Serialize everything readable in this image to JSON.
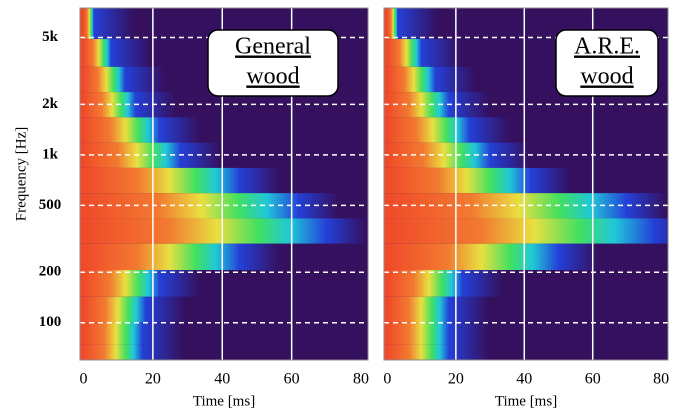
{
  "chart_data": [
    {
      "type": "heatmap",
      "xlabel": "Time [ms]",
      "ylabel": "Frequency [Hz]",
      "annotation": [
        "General",
        "wood"
      ],
      "y": [
        6000,
        4000,
        2800,
        2000,
        1400,
        1000,
        700,
        500,
        350,
        250,
        170,
        120,
        85,
        65
      ],
      "values": [
        3,
        8,
        12,
        15,
        22,
        28,
        45,
        62,
        70,
        45,
        22,
        18,
        17,
        17
      ],
      "xlim": [
        -1,
        82
      ],
      "xticks": [
        0,
        20,
        40,
        60,
        80
      ],
      "ylim": [
        60,
        7500
      ],
      "log_y": true,
      "yticks": [
        {
          "value": 5000,
          "label": "5k"
        },
        {
          "value": 2000,
          "label": "2k"
        },
        {
          "value": 1000,
          "label": "1k"
        },
        500,
        200,
        100
      ],
      "vgrid": [
        20,
        40,
        60
      ]
    },
    {
      "type": "heatmap",
      "xlabel": "Time [ms]",
      "annotation": [
        "A.R.E.",
        "wood"
      ],
      "y": [
        6000,
        4000,
        2800,
        2000,
        1400,
        1000,
        700,
        500,
        350,
        250,
        170,
        120,
        85,
        65
      ],
      "values": [
        3,
        10,
        14,
        18,
        24,
        30,
        42,
        70,
        78,
        50,
        22,
        18,
        18,
        18
      ],
      "xlim": [
        -1,
        82
      ],
      "xticks": [
        0,
        20,
        40,
        60,
        80
      ],
      "ylim": [
        60,
        7500
      ],
      "log_y": true,
      "yticks": [
        5000,
        2000,
        1000,
        500,
        200,
        100
      ],
      "vgrid": [
        20,
        40,
        60
      ]
    }
  ]
}
